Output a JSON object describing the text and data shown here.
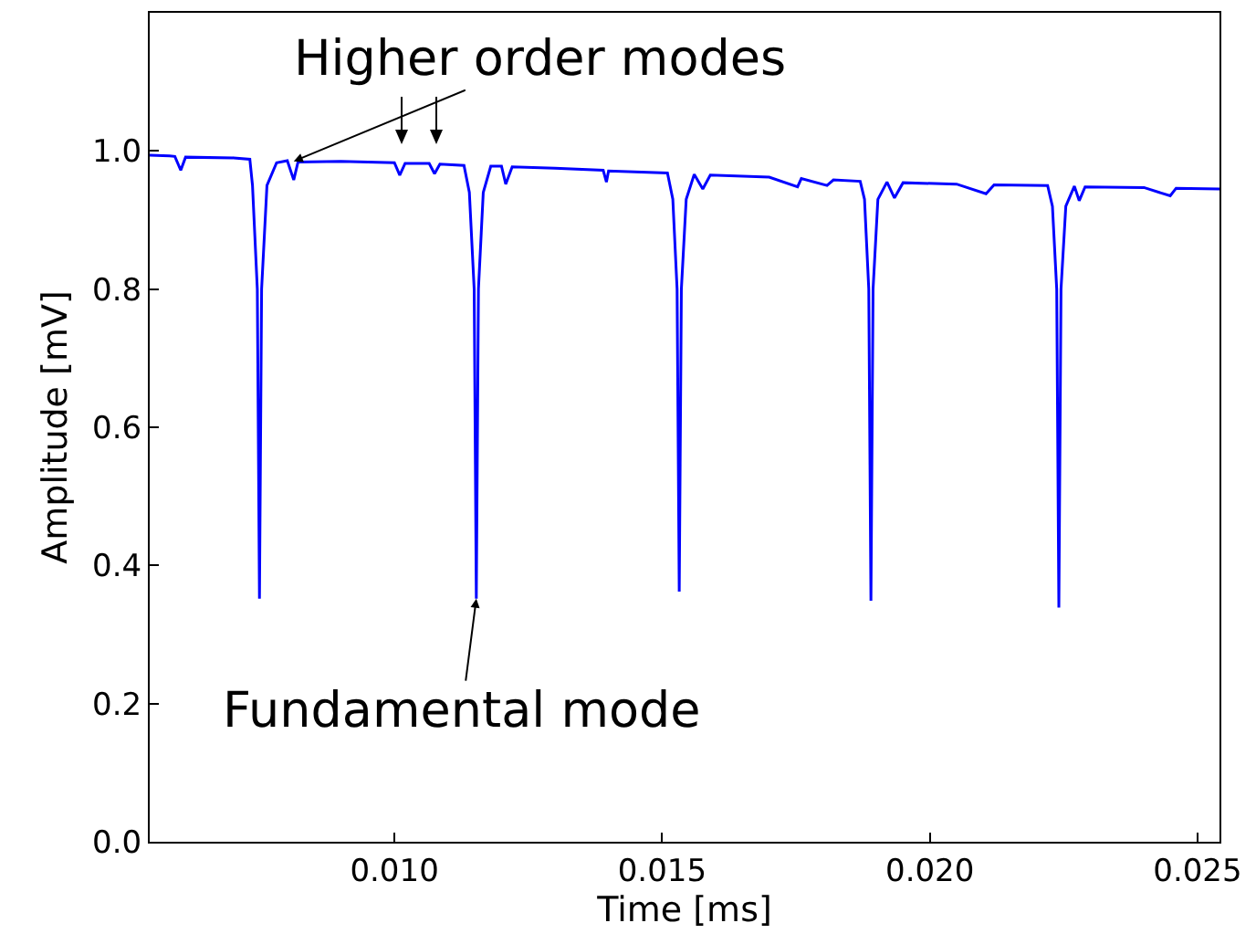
{
  "chart_data": {
    "type": "line",
    "xlabel": "Time [ms]",
    "ylabel": "Amplitude [mV]",
    "xlim": [
      0.00543,
      0.02541
    ],
    "xticks": [
      {
        "value": 0.01,
        "label": "0.010"
      },
      0.015,
      {
        "value": 0.02,
        "label": "0.020"
      },
      0.025
    ],
    "ylim": [
      0,
      1.2
    ],
    "yticks": [
      {
        "value": 0,
        "label": "0.0"
      },
      0.2,
      0.4,
      0.6,
      0.8,
      {
        "value": 1,
        "label": "1.0"
      }
    ],
    "grid": false,
    "marker": "none",
    "line_style": "solid",
    "series": [
      {
        "color": "#0000ff",
        "x": [
          0.00543,
          0.0058,
          0.0059,
          0.00601,
          0.0061,
          0.007,
          0.0073,
          0.00735,
          0.00744,
          0.00748,
          0.00752,
          0.00762,
          0.0078,
          0.008,
          0.00812,
          0.0082,
          0.009,
          0.01,
          0.0101,
          0.0102,
          0.01065,
          0.01075,
          0.01085,
          0.0113,
          0.0114,
          0.01149,
          0.01153,
          0.01157,
          0.01166,
          0.0118,
          0.012,
          0.01208,
          0.0122,
          0.013,
          0.0139,
          0.01396,
          0.014,
          0.0151,
          0.0152,
          0.01528,
          0.01532,
          0.01536,
          0.01545,
          0.0156,
          0.01576,
          0.0159,
          0.017,
          0.01753,
          0.0176,
          0.01808,
          0.0182,
          0.0187,
          0.01878,
          0.01886,
          0.0189,
          0.01894,
          0.01903,
          0.0192,
          0.01934,
          0.0195,
          0.0205,
          0.02105,
          0.0212,
          0.0222,
          0.02229,
          0.02237,
          0.02241,
          0.02245,
          0.02254,
          0.0227,
          0.02279,
          0.0229,
          0.024,
          0.02449,
          0.0246,
          0.02541
        ],
        "values": [
          0.994,
          0.993,
          0.992,
          0.972,
          0.991,
          0.99,
          0.988,
          0.95,
          0.8,
          0.352,
          0.8,
          0.95,
          0.983,
          0.986,
          0.958,
          0.984,
          0.985,
          0.983,
          0.965,
          0.982,
          0.982,
          0.967,
          0.981,
          0.979,
          0.94,
          0.8,
          0.352,
          0.8,
          0.94,
          0.978,
          0.978,
          0.952,
          0.977,
          0.975,
          0.972,
          0.955,
          0.971,
          0.968,
          0.93,
          0.8,
          0.362,
          0.8,
          0.93,
          0.966,
          0.945,
          0.965,
          0.962,
          0.948,
          0.96,
          0.95,
          0.958,
          0.956,
          0.93,
          0.8,
          0.349,
          0.8,
          0.93,
          0.955,
          0.932,
          0.954,
          0.952,
          0.938,
          0.951,
          0.95,
          0.92,
          0.8,
          0.339,
          0.8,
          0.92,
          0.949,
          0.928,
          0.948,
          0.947,
          0.935,
          0.946,
          0.945
        ]
      }
    ],
    "annotations": [
      {
        "text": "Higher order modes",
        "x": 0.00812,
        "y": 0.985
      },
      {
        "text": "Fundamental mode",
        "x": 0.01153,
        "y": 0.352
      }
    ]
  }
}
